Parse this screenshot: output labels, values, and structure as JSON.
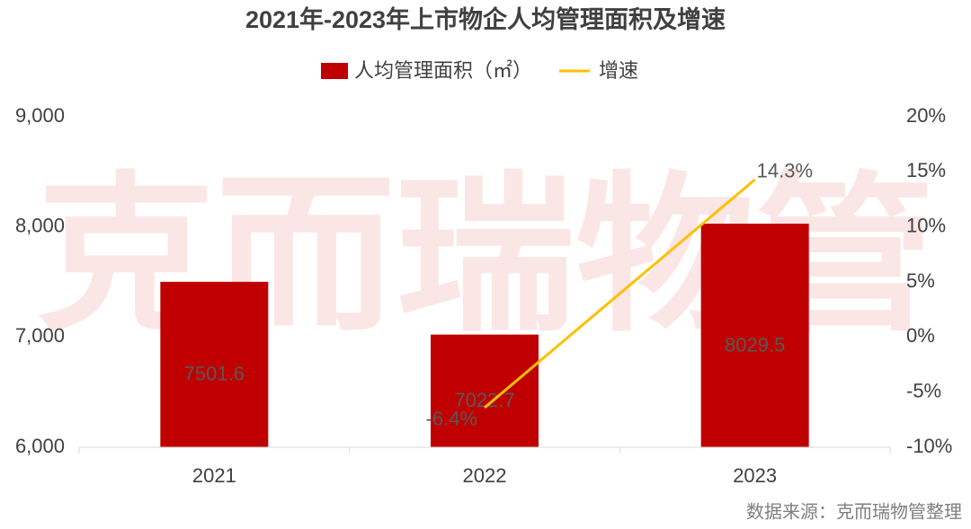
{
  "chart_data": {
    "type": "bar",
    "title": "2021年-2023年上市物企人均管理面积及增速",
    "watermark": "克而瑞物管",
    "source": "数据来源：克而瑞物管整理",
    "categories": [
      "2021",
      "2022",
      "2023"
    ],
    "series": [
      {
        "name": "人均管理面积（㎡）",
        "color": "#c00000",
        "values": [
          7501.6,
          7022.7,
          8029.5
        ]
      },
      {
        "name": "增速",
        "type": "line",
        "axis": "y2",
        "color": "#ffc000",
        "values": [
          null,
          -6.4,
          14.3
        ],
        "value_labels": [
          null,
          "-6.4%",
          "14.3%"
        ]
      }
    ],
    "ylim": [
      6000,
      9000
    ],
    "yticks": [
      {
        "value": 6000,
        "label": "6,000"
      },
      {
        "value": 7000,
        "label": "7,000"
      },
      {
        "value": 8000,
        "label": "8,000"
      },
      {
        "value": 9000,
        "label": "9,000"
      }
    ],
    "y2lim": [
      -10,
      20
    ],
    "y2ticks": [
      {
        "value": -10,
        "label": "-10%"
      },
      {
        "value": -5,
        "label": "-5%"
      },
      {
        "value": 0,
        "label": "0%"
      },
      {
        "value": 5,
        "label": "5%"
      },
      {
        "value": 10,
        "label": "10%"
      },
      {
        "value": 15,
        "label": "15%"
      },
      {
        "value": 20,
        "label": "20%"
      }
    ]
  }
}
